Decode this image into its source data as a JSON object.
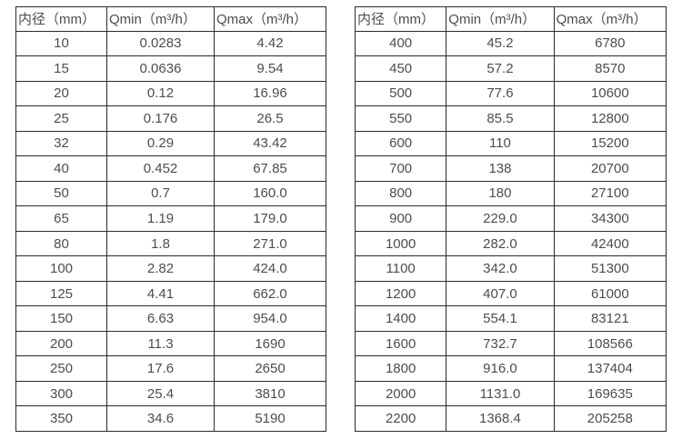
{
  "colors": {
    "bg": "#ffffff",
    "border": "#2b2b2b",
    "text": "#4d4d4d"
  },
  "tables": [
    {
      "name": "flow-table-small-diameters",
      "headers": [
        "内径（mm）",
        "Qmin（m³/h）",
        "Qmax（m³/h）"
      ],
      "rows": [
        [
          "10",
          "0.0283",
          "4.42"
        ],
        [
          "15",
          "0.0636",
          "9.54"
        ],
        [
          "20",
          "0.12",
          "16.96"
        ],
        [
          "25",
          "0.176",
          "26.5"
        ],
        [
          "32",
          "0.29",
          "43.42"
        ],
        [
          "40",
          "0.452",
          "67.85"
        ],
        [
          "50",
          "0.7",
          "160.0"
        ],
        [
          "65",
          "1.19",
          "179.0"
        ],
        [
          "80",
          "1.8",
          "271.0"
        ],
        [
          "100",
          "2.82",
          "424.0"
        ],
        [
          "125",
          "4.41",
          "662.0"
        ],
        [
          "150",
          "6.63",
          "954.0"
        ],
        [
          "200",
          "11.3",
          "1690"
        ],
        [
          "250",
          "17.6",
          "2650"
        ],
        [
          "300",
          "25.4",
          "3810"
        ],
        [
          "350",
          "34.6",
          "5190"
        ]
      ]
    },
    {
      "name": "flow-table-large-diameters",
      "headers": [
        "内径（mm）",
        "Qmin（m³/h）",
        "Qmax（m³/h）"
      ],
      "rows": [
        [
          "400",
          "45.2",
          "6780"
        ],
        [
          "450",
          "57.2",
          "8570"
        ],
        [
          "500",
          "77.6",
          "10600"
        ],
        [
          "550",
          "85.5",
          "12800"
        ],
        [
          "600",
          "110",
          "15200"
        ],
        [
          "700",
          "138",
          "20700"
        ],
        [
          "800",
          "180",
          "27100"
        ],
        [
          "900",
          "229.0",
          "34300"
        ],
        [
          "1000",
          "282.0",
          "42400"
        ],
        [
          "1100",
          "342.0",
          "51300"
        ],
        [
          "1200",
          "407.0",
          "61000"
        ],
        [
          "1400",
          "554.1",
          "83121"
        ],
        [
          "1600",
          "732.7",
          "108566"
        ],
        [
          "1800",
          "916.0",
          "137404"
        ],
        [
          "2000",
          "1131.0",
          "169635"
        ],
        [
          "2200",
          "1368.4",
          "205258"
        ]
      ]
    }
  ]
}
